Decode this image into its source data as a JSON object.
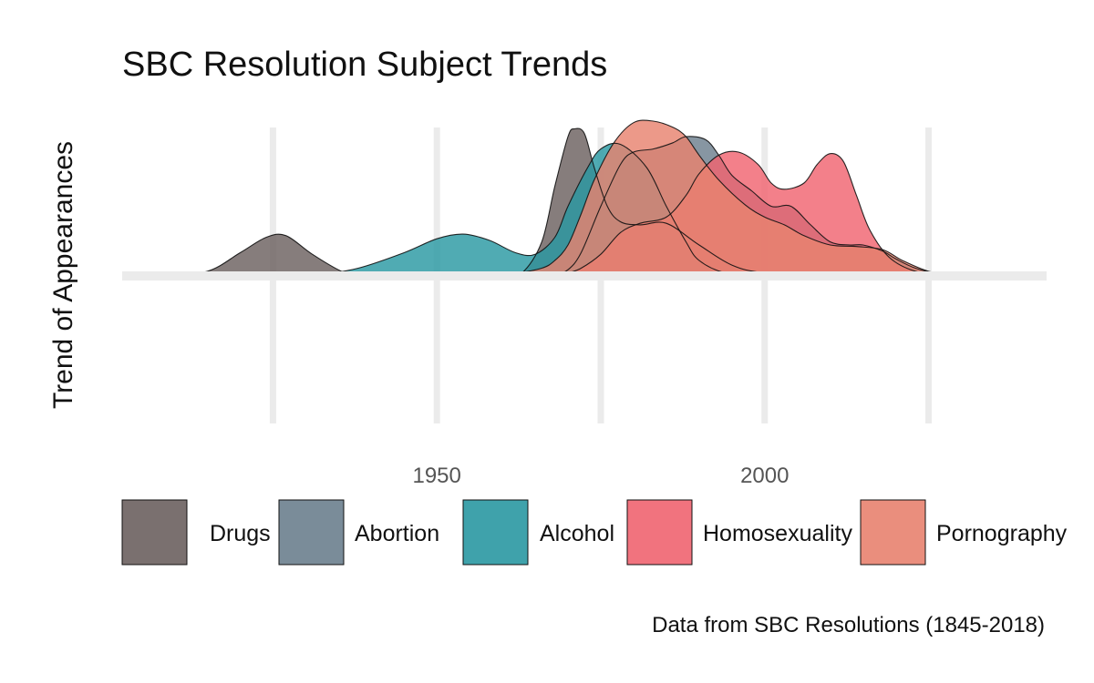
{
  "chart_data": {
    "type": "area",
    "title": "SBC Resolution Subject Trends",
    "xlabel": "",
    "ylabel": "Trend of Appearances",
    "caption": "Data from SBC Resolutions (1845-2018)",
    "x_ticks": [
      1950,
      2000
    ],
    "x_grid": [
      1925,
      1950,
      1975,
      2000,
      2025
    ],
    "xlim": [
      1902,
      2043
    ],
    "ylim": [
      -1.0,
      1.1
    ],
    "grid": true,
    "legend_position": "bottom",
    "series": [
      {
        "name": "Drugs",
        "color": "#6b605f",
        "x": [
          1908,
          1915,
          1920,
          1924,
          1927,
          1931,
          1936,
          1940,
          1945,
          1950,
          1955,
          1960,
          1963,
          1966,
          1968,
          1970,
          1971,
          1972.5,
          1974,
          1976,
          1978,
          1981,
          1985,
          1990,
          1995,
          2000,
          2010,
          2020,
          2032
        ],
        "y": [
          0,
          0.03,
          0.15,
          0.25,
          0.26,
          0.14,
          0.02,
          0,
          0,
          0,
          0,
          0,
          0.02,
          0.22,
          0.58,
          0.9,
          0.95,
          0.92,
          0.7,
          0.45,
          0.35,
          0.33,
          0.34,
          0.2,
          0.07,
          0.02,
          0,
          0,
          0
        ]
      },
      {
        "name": "Abortion",
        "color": "#6c7f8e",
        "x": [
          1960,
          1965,
          1968,
          1970,
          1972,
          1975,
          1978,
          1980,
          1983,
          1986,
          1988,
          1991,
          1993,
          1995,
          1998,
          2001,
          2004,
          2007,
          2010,
          2013,
          2015,
          2018,
          2020,
          2023,
          2027,
          2031
        ],
        "y": [
          0,
          0,
          0.01,
          0.04,
          0.15,
          0.45,
          0.72,
          0.8,
          0.82,
          0.86,
          0.9,
          0.88,
          0.78,
          0.65,
          0.55,
          0.45,
          0.45,
          0.33,
          0.22,
          0.2,
          0.2,
          0.16,
          0.11,
          0.05,
          0.01,
          0
        ]
      },
      {
        "name": "Alcohol",
        "color": "#2a98a2",
        "x": [
          1925,
          1932,
          1938,
          1945,
          1950,
          1954,
          1958,
          1962,
          1965,
          1968,
          1970,
          1973,
          1975,
          1978,
          1982,
          1985,
          1988,
          1990,
          1994,
          2000,
          2005
        ],
        "y": [
          0,
          0.01,
          0.05,
          0.15,
          0.24,
          0.27,
          0.23,
          0.15,
          0.14,
          0.25,
          0.45,
          0.7,
          0.82,
          0.85,
          0.7,
          0.45,
          0.22,
          0.1,
          0.02,
          0,
          0
        ]
      },
      {
        "name": "Homosexuality",
        "color": "#f06470",
        "x": [
          1955,
          1960,
          1965,
          1968,
          1970,
          1972,
          1975,
          1978,
          1981,
          1985,
          1988,
          1990,
          1993,
          1996,
          1999,
          2001,
          2003,
          2006,
          2008,
          2010,
          2012,
          2014,
          2016,
          2019,
          2023,
          2028,
          2031
        ],
        "y": [
          0,
          0,
          0,
          0.01,
          0.02,
          0.05,
          0.14,
          0.28,
          0.34,
          0.38,
          0.52,
          0.66,
          0.78,
          0.8,
          0.72,
          0.6,
          0.56,
          0.6,
          0.72,
          0.79,
          0.74,
          0.52,
          0.3,
          0.12,
          0.03,
          0.005,
          0
        ]
      },
      {
        "name": "Pornography",
        "color": "#e8826f",
        "x": [
          1940,
          1950,
          1957,
          1962,
          1966,
          1968,
          1970,
          1972,
          1974,
          1977,
          1980,
          1983,
          1986,
          1988,
          1990,
          1993,
          1997,
          2000,
          2003,
          2006,
          2010,
          2014,
          2018,
          2021,
          2025,
          2029,
          2031
        ],
        "y": [
          0,
          0.01,
          0.01,
          0.02,
          0.05,
          0.1,
          0.2,
          0.4,
          0.62,
          0.86,
          0.99,
          1.0,
          0.96,
          0.9,
          0.78,
          0.62,
          0.46,
          0.38,
          0.33,
          0.26,
          0.2,
          0.19,
          0.17,
          0.1,
          0.03,
          0.005,
          0
        ]
      }
    ]
  }
}
